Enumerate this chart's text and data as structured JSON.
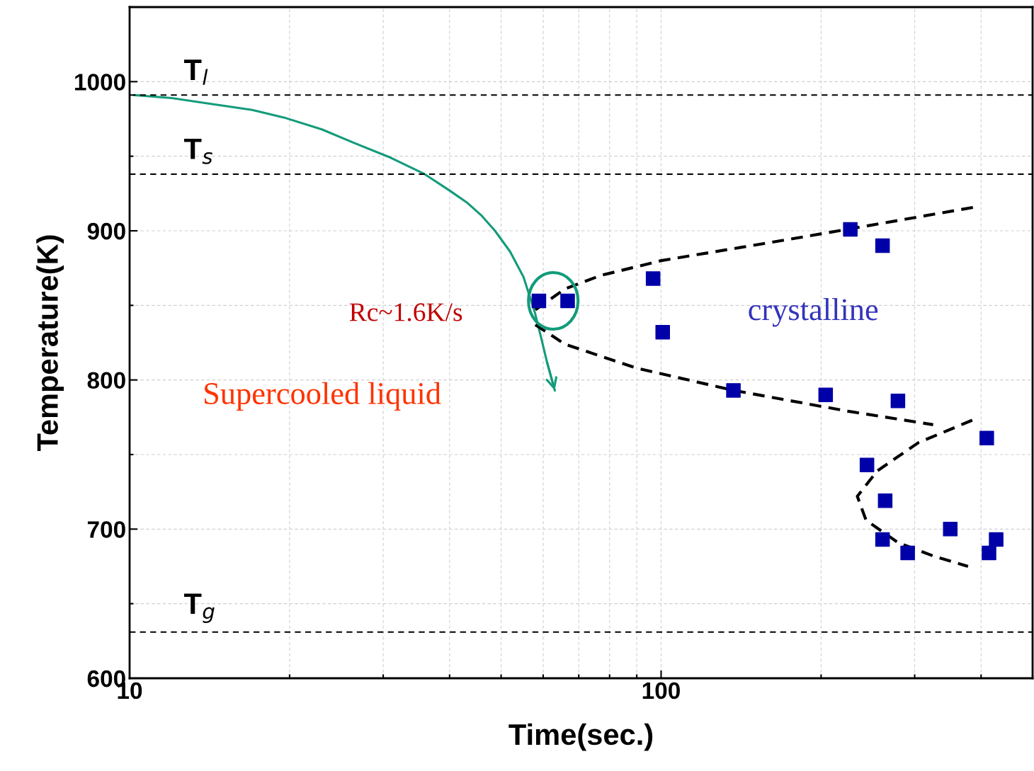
{
  "chart_data": {
    "type": "scatter",
    "xlabel": "Time(sec.)",
    "ylabel": "Temperature(K)",
    "log": "x",
    "xlim": [
      10,
      500
    ],
    "xticks": [
      10,
      100
    ],
    "ylim": [
      600,
      1050
    ],
    "yticks": [
      600,
      700,
      800,
      900,
      1000
    ],
    "grid": true,
    "series": [
      {
        "type": "line",
        "color": "#139b7a",
        "line_style": "solid",
        "marker": "none",
        "x": [
          10.2,
          12.0,
          14.3,
          17.0,
          19.5,
          23.0,
          26.4,
          31.0,
          35.9,
          40.0,
          43.1,
          46.0,
          48.7,
          52.0,
          55.1,
          57.9,
          59.5,
          61.0,
          63.1
        ],
        "values": [
          991,
          989,
          985,
          981,
          976,
          968,
          959,
          949,
          938,
          927,
          919,
          910,
          900,
          886,
          869,
          845,
          828,
          812,
          793
        ]
      },
      {
        "type": "line",
        "color": "#000000",
        "line_style": "dashed",
        "marker": "none",
        "x": [
          58,
          65.9,
          76.9,
          100,
          142,
          193,
          391
        ],
        "values": [
          847,
          861,
          870,
          880,
          889,
          897,
          916
        ]
      },
      {
        "type": "line",
        "color": "#000000",
        "line_style": "dashed",
        "marker": "none",
        "x": [
          58,
          65.9,
          89.8,
          137,
          225,
          325
        ],
        "values": [
          837,
          824,
          808,
          793,
          779,
          770
        ]
      },
      {
        "type": "line",
        "color": "#000000",
        "line_style": "dashed",
        "marker": "none",
        "x": [
          385,
          305,
          255,
          234,
          243,
          279,
          325,
          378
        ],
        "values": [
          773,
          758,
          739,
          722,
          706,
          691,
          682,
          675
        ]
      },
      {
        "color": "#0000a8",
        "marker": "square",
        "x": [
          58.9,
          66.7,
          96.6,
          100.7,
          136.8,
          204,
          227,
          261,
          279,
          244,
          264,
          261,
          291,
          350,
          410,
          414,
          427
        ],
        "values": [
          853,
          853,
          868,
          832,
          793,
          790,
          901,
          890,
          786,
          743,
          719,
          693,
          684,
          700,
          761,
          684,
          693
        ]
      }
    ],
    "ref_lines": [
      {
        "axis": "y",
        "value": 991,
        "label": "T$_{l}$",
        "color": "#000000",
        "line_style": "dashed"
      },
      {
        "axis": "y",
        "value": 938,
        "label": "T$_{s}$",
        "color": "#000000",
        "line_style": "dashed"
      },
      {
        "axis": "y",
        "value": 631,
        "label": "T$_{g}$",
        "color": "#000000",
        "line_style": "dashed"
      }
    ],
    "annotations": [
      "Rc~1.6K/s",
      "Supercooled liquid",
      "crystalline"
    ]
  }
}
